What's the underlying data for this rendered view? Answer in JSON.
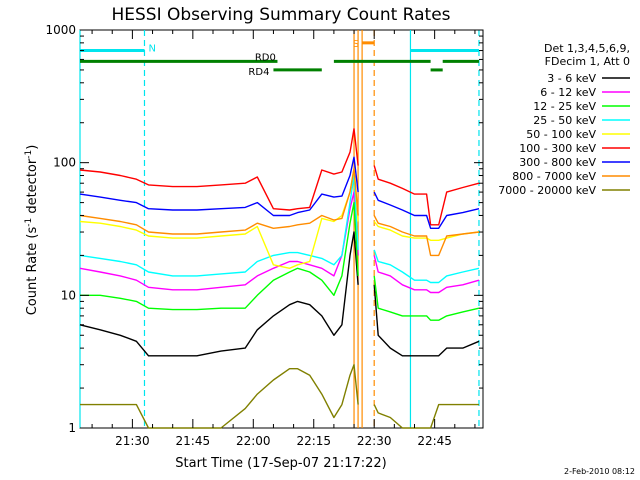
{
  "chart_data": {
    "type": "line",
    "title": "HESSI Observing Summary Count Rates",
    "xlabel": "Start Time (17-Sep-07 21:17:22)",
    "ylabel": "Count Rate (s⁻¹ detector⁻¹)",
    "ylabel_parts": [
      "Count Rate (s",
      "-1",
      " detector",
      "-1",
      ")"
    ],
    "yscale": "log",
    "ylim": [
      1,
      1000
    ],
    "xlim": [
      "21:17",
      "22:57"
    ],
    "y_ticks": [
      {
        "value": 1,
        "label": "1"
      },
      {
        "value": 10,
        "label": "10"
      },
      {
        "value": 100,
        "label": "100"
      },
      {
        "value": 1000,
        "label": "1000"
      }
    ],
    "x_ticks": [
      "21:30",
      "21:45",
      "22:00",
      "22:15",
      "22:30",
      "22:45"
    ],
    "legend_header": [
      "Det 1,3,4,5,6,9,",
      "FDecim 1, Att 0"
    ],
    "legend_position": "right",
    "timestamp": "2-Feb-2010 08:12",
    "bars": [
      {
        "label": "N",
        "color": "#00e5ee",
        "segments": [
          [
            "21:17",
            "21:33"
          ],
          [
            "22:39",
            "22:56"
          ]
        ],
        "level": 700
      },
      {
        "label": "S",
        "color": "#ff8c00",
        "segments": [
          [
            "22:27",
            "22:30"
          ]
        ],
        "level": 800
      },
      {
        "label": "RD0",
        "color": "#008000",
        "segments": [
          [
            "21:17",
            "22:06"
          ],
          [
            "22:20",
            "22:44"
          ],
          [
            "22:47",
            "22:56"
          ]
        ],
        "level": 580
      },
      {
        "label": "RD4",
        "color": "#008000",
        "segments": [
          [
            "22:05",
            "22:17"
          ],
          [
            "22:44",
            "22:47"
          ]
        ],
        "level": 500
      }
    ],
    "vertical_lines": [
      {
        "time": "21:17",
        "color": "#00e5ee",
        "style": "solid"
      },
      {
        "time": "21:33",
        "color": "#00e5ee",
        "style": "dashed"
      },
      {
        "time": "22:25",
        "color": "#ff8c00",
        "style": "solid"
      },
      {
        "time": "22:26",
        "color": "#ff8c00",
        "style": "solid"
      },
      {
        "time": "22:27",
        "color": "#ff8c00",
        "style": "solid"
      },
      {
        "time": "22:30",
        "color": "#ff8c00",
        "style": "dashed"
      },
      {
        "time": "22:39",
        "color": "#00e5ee",
        "style": "solid"
      },
      {
        "time": "22:56",
        "color": "#00e5ee",
        "style": "dashed"
      }
    ],
    "x": [
      "21:17",
      "21:22",
      "21:27",
      "21:31",
      "21:34",
      "21:40",
      "21:46",
      "21:52",
      "21:58",
      "22:01",
      "22:05",
      "22:09",
      "22:11",
      "22:14",
      "22:17",
      "22:20",
      "22:22",
      "22:24",
      "22:25",
      "22:26",
      "22:30",
      "22:31",
      "22:34",
      "22:37",
      "22:40",
      "22:43",
      "22:44",
      "22:46",
      "22:48",
      "22:52",
      "22:56"
    ],
    "gap": [
      "22:26",
      "22:30"
    ],
    "series": [
      {
        "name": "3 - 6 keV",
        "color": "#000000",
        "values": [
          6,
          5.5,
          5,
          4.5,
          3.5,
          3.5,
          3.5,
          3.8,
          4,
          5.5,
          7,
          8.5,
          9,
          8.5,
          7,
          5,
          6,
          20,
          30,
          12,
          12,
          5,
          4,
          3.5,
          3.5,
          3.5,
          3.5,
          3.5,
          4,
          4,
          4.5
        ]
      },
      {
        "name": "6 - 12 keV",
        "color": "#ff00ff",
        "values": [
          16,
          15,
          14,
          13,
          11.5,
          11,
          11,
          11.5,
          12,
          14,
          16,
          18,
          18,
          17,
          16,
          14,
          20,
          45,
          60,
          20,
          20,
          15,
          14,
          12,
          11,
          11,
          10.5,
          10.5,
          11.5,
          12,
          13
        ]
      },
      {
        "name": "12 - 25 keV",
        "color": "#00ff00",
        "values": [
          10,
          10,
          9.5,
          9,
          8,
          7.8,
          7.8,
          8,
          8,
          10,
          13,
          15,
          16,
          15,
          13,
          10,
          14,
          35,
          50,
          14,
          14,
          8,
          7.5,
          7,
          7,
          7,
          6.5,
          6.5,
          7,
          7.5,
          8
        ]
      },
      {
        "name": "25 - 50 keV",
        "color": "#00ffff",
        "values": [
          20,
          19,
          18,
          17,
          15,
          14,
          14,
          14.5,
          15,
          18,
          20,
          21,
          21,
          20,
          19,
          17,
          20,
          50,
          80,
          22,
          22,
          18,
          17,
          15,
          13,
          13,
          12.5,
          12.5,
          14,
          15,
          16
        ]
      },
      {
        "name": "50 - 100 keV",
        "color": "#ffff00",
        "values": [
          36,
          35,
          33,
          31,
          28,
          27,
          27,
          28,
          29,
          33,
          17,
          16,
          17,
          18,
          38,
          36,
          40,
          60,
          90,
          36,
          36,
          33,
          31,
          28,
          27,
          27,
          26,
          26,
          27,
          29,
          30
        ]
      },
      {
        "name": "100 - 300 keV",
        "color": "#ff0000",
        "values": [
          88,
          85,
          80,
          75,
          68,
          66,
          66,
          68,
          70,
          78,
          45,
          44,
          45,
          46,
          88,
          82,
          85,
          120,
          180,
          95,
          95,
          75,
          70,
          64,
          58,
          58,
          34,
          34,
          60,
          65,
          70
        ]
      },
      {
        "name": "300 - 800 keV",
        "color": "#0000ff",
        "values": [
          58,
          55,
          52,
          50,
          45,
          44,
          44,
          45,
          46,
          50,
          40,
          40,
          42,
          44,
          58,
          55,
          56,
          80,
          110,
          60,
          60,
          52,
          48,
          44,
          40,
          40,
          32,
          32,
          40,
          42,
          45
        ]
      },
      {
        "name": "800 - 7000 keV",
        "color": "#ff8c00",
        "values": [
          40,
          38,
          36,
          34,
          30,
          29,
          29,
          30,
          31,
          35,
          32,
          33,
          34,
          35,
          40,
          37,
          38,
          60,
          90,
          40,
          40,
          35,
          33,
          30,
          28,
          28,
          20,
          20,
          28,
          29,
          30
        ]
      },
      {
        "name": "7000 - 20000 keV",
        "color": "#808000",
        "values": [
          1.5,
          1.5,
          1.5,
          1.5,
          1,
          1,
          1,
          1,
          1.4,
          1.8,
          2.3,
          2.8,
          2.8,
          2.5,
          1.8,
          1.2,
          1.5,
          2.5,
          3,
          1.5,
          1.5,
          1.3,
          1.2,
          1,
          1,
          1,
          1,
          1.5,
          1.5,
          1.5,
          1.5
        ]
      }
    ]
  }
}
